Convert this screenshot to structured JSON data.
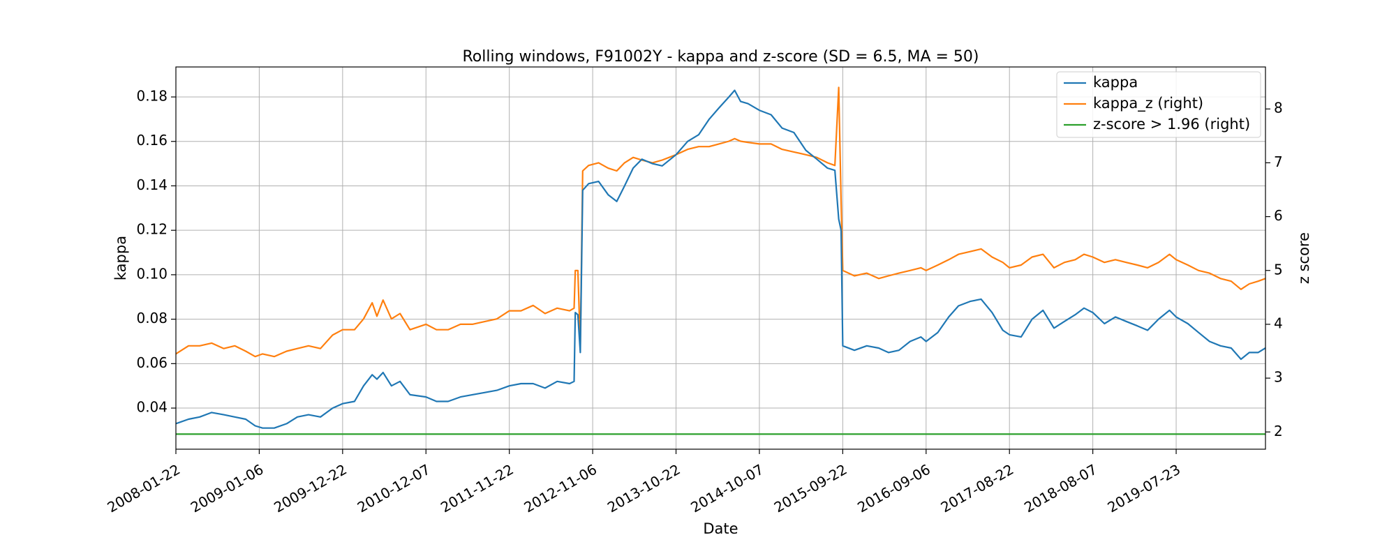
{
  "chart_data": {
    "type": "line",
    "title": "Rolling windows, F91002Y - kappa and z-score (SD = 6.5, MA = 50)",
    "xlabel": "Date",
    "ylabel": "kappa",
    "ylabel_right": "z score",
    "xlim": [
      "2008-01-22",
      "2020-08-01"
    ],
    "ylim": [
      0.0215,
      0.1935
    ],
    "ylim_right": [
      1.68,
      8.78
    ],
    "grid": true,
    "legend_position": "top-right",
    "x_ticks": [
      "2008-01-22",
      "2009-01-06",
      "2009-12-22",
      "2010-12-07",
      "2011-11-22",
      "2012-11-06",
      "2013-10-22",
      "2014-10-07",
      "2015-09-22",
      "2016-09-06",
      "2017-08-22",
      "2018-08-07",
      "2019-07-23"
    ],
    "y_ticks": [
      "0.04",
      "0.06",
      "0.08",
      "0.10",
      "0.12",
      "0.14",
      "0.16",
      "0.18"
    ],
    "y_ticks_right": [
      "2",
      "3",
      "4",
      "5",
      "6",
      "7",
      "8"
    ],
    "series": [
      {
        "name": "kappa",
        "axis": "left",
        "color": "#1f77b4",
        "points": [
          [
            "2008-01-22",
            0.033
          ],
          [
            "2008-03-15",
            0.035
          ],
          [
            "2008-05-01",
            0.036
          ],
          [
            "2008-06-20",
            0.038
          ],
          [
            "2008-08-10",
            0.037
          ],
          [
            "2008-09-25",
            0.036
          ],
          [
            "2008-11-10",
            0.035
          ],
          [
            "2008-12-20",
            0.032
          ],
          [
            "2009-01-20",
            0.031
          ],
          [
            "2009-03-10",
            0.031
          ],
          [
            "2009-05-01",
            0.033
          ],
          [
            "2009-06-15",
            0.036
          ],
          [
            "2009-08-01",
            0.037
          ],
          [
            "2009-09-20",
            0.036
          ],
          [
            "2009-11-10",
            0.04
          ],
          [
            "2009-12-22",
            0.042
          ],
          [
            "2010-02-10",
            0.043
          ],
          [
            "2010-03-20",
            0.05
          ],
          [
            "2010-04-25",
            0.055
          ],
          [
            "2010-05-15",
            0.053
          ],
          [
            "2010-06-10",
            0.056
          ],
          [
            "2010-07-15",
            0.05
          ],
          [
            "2010-08-20",
            0.052
          ],
          [
            "2010-10-01",
            0.046
          ],
          [
            "2010-12-07",
            0.045
          ],
          [
            "2011-01-20",
            0.043
          ],
          [
            "2011-03-10",
            0.043
          ],
          [
            "2011-05-01",
            0.045
          ],
          [
            "2011-06-20",
            0.046
          ],
          [
            "2011-08-10",
            0.047
          ],
          [
            "2011-10-01",
            0.048
          ],
          [
            "2011-11-22",
            0.05
          ],
          [
            "2012-01-10",
            0.051
          ],
          [
            "2012-03-01",
            0.051
          ],
          [
            "2012-04-20",
            0.049
          ],
          [
            "2012-06-10",
            0.052
          ],
          [
            "2012-08-01",
            0.051
          ],
          [
            "2012-08-20",
            0.052
          ],
          [
            "2012-08-25",
            0.083
          ],
          [
            "2012-09-05",
            0.082
          ],
          [
            "2012-09-15",
            0.065
          ],
          [
            "2012-09-25",
            0.138
          ],
          [
            "2012-10-20",
            0.141
          ],
          [
            "2012-12-01",
            0.142
          ],
          [
            "2013-01-10",
            0.136
          ],
          [
            "2013-02-15",
            0.133
          ],
          [
            "2013-03-20",
            0.14
          ],
          [
            "2013-04-25",
            0.148
          ],
          [
            "2013-06-01",
            0.152
          ],
          [
            "2013-07-15",
            0.15
          ],
          [
            "2013-08-25",
            0.149
          ],
          [
            "2013-10-22",
            0.154
          ],
          [
            "2013-12-10",
            0.16
          ],
          [
            "2014-01-25",
            0.163
          ],
          [
            "2014-03-10",
            0.17
          ],
          [
            "2014-04-20",
            0.175
          ],
          [
            "2014-06-01",
            0.18
          ],
          [
            "2014-06-25",
            0.183
          ],
          [
            "2014-07-20",
            0.178
          ],
          [
            "2014-08-20",
            0.177
          ],
          [
            "2014-10-07",
            0.174
          ],
          [
            "2014-11-25",
            0.172
          ],
          [
            "2015-01-10",
            0.166
          ],
          [
            "2015-03-01",
            0.164
          ],
          [
            "2015-04-20",
            0.156
          ],
          [
            "2015-06-05",
            0.152
          ],
          [
            "2015-07-20",
            0.148
          ],
          [
            "2015-08-20",
            0.147
          ],
          [
            "2015-09-05",
            0.125
          ],
          [
            "2015-09-15",
            0.12
          ],
          [
            "2015-09-22",
            0.068
          ],
          [
            "2015-11-10",
            0.066
          ],
          [
            "2016-01-01",
            0.068
          ],
          [
            "2016-02-20",
            0.067
          ],
          [
            "2016-04-01",
            0.065
          ],
          [
            "2016-05-15",
            0.066
          ],
          [
            "2016-07-01",
            0.07
          ],
          [
            "2016-08-15",
            0.072
          ],
          [
            "2016-09-06",
            0.07
          ],
          [
            "2016-10-25",
            0.074
          ],
          [
            "2016-12-10",
            0.081
          ],
          [
            "2017-01-20",
            0.086
          ],
          [
            "2017-03-10",
            0.088
          ],
          [
            "2017-04-25",
            0.089
          ],
          [
            "2017-06-10",
            0.083
          ],
          [
            "2017-07-25",
            0.075
          ],
          [
            "2017-08-22",
            0.073
          ],
          [
            "2017-10-10",
            0.072
          ],
          [
            "2017-11-25",
            0.08
          ],
          [
            "2018-01-10",
            0.084
          ],
          [
            "2018-02-25",
            0.076
          ],
          [
            "2018-04-10",
            0.079
          ],
          [
            "2018-05-25",
            0.082
          ],
          [
            "2018-07-01",
            0.085
          ],
          [
            "2018-08-07",
            0.083
          ],
          [
            "2018-09-25",
            0.078
          ],
          [
            "2018-11-10",
            0.081
          ],
          [
            "2018-12-25",
            0.079
          ],
          [
            "2019-02-10",
            0.077
          ],
          [
            "2019-03-25",
            0.075
          ],
          [
            "2019-05-10",
            0.08
          ],
          [
            "2019-06-25",
            0.084
          ],
          [
            "2019-07-23",
            0.081
          ],
          [
            "2019-09-10",
            0.078
          ],
          [
            "2019-10-25",
            0.074
          ],
          [
            "2019-12-10",
            0.07
          ],
          [
            "2020-01-25",
            0.068
          ],
          [
            "2020-03-10",
            0.067
          ],
          [
            "2020-04-20",
            0.062
          ],
          [
            "2020-05-25",
            0.065
          ],
          [
            "2020-07-01",
            0.065
          ],
          [
            "2020-08-01",
            0.067
          ]
        ]
      },
      {
        "name": "kappa_z (right)",
        "axis": "right",
        "color": "#ff7f0e",
        "points": [
          [
            "2008-01-22",
            3.45
          ],
          [
            "2008-03-15",
            3.6
          ],
          [
            "2008-05-01",
            3.6
          ],
          [
            "2008-06-20",
            3.65
          ],
          [
            "2008-08-10",
            3.55
          ],
          [
            "2008-09-25",
            3.6
          ],
          [
            "2008-11-10",
            3.5
          ],
          [
            "2008-12-20",
            3.4
          ],
          [
            "2009-01-20",
            3.45
          ],
          [
            "2009-03-10",
            3.4
          ],
          [
            "2009-05-01",
            3.5
          ],
          [
            "2009-06-15",
            3.55
          ],
          [
            "2009-08-01",
            3.6
          ],
          [
            "2009-09-20",
            3.55
          ],
          [
            "2009-11-10",
            3.8
          ],
          [
            "2009-12-22",
            3.9
          ],
          [
            "2010-02-10",
            3.9
          ],
          [
            "2010-03-20",
            4.1
          ],
          [
            "2010-04-25",
            4.4
          ],
          [
            "2010-05-15",
            4.15
          ],
          [
            "2010-06-10",
            4.45
          ],
          [
            "2010-07-15",
            4.1
          ],
          [
            "2010-08-20",
            4.2
          ],
          [
            "2010-10-01",
            3.9
          ],
          [
            "2010-12-07",
            4.0
          ],
          [
            "2011-01-20",
            3.9
          ],
          [
            "2011-03-10",
            3.9
          ],
          [
            "2011-05-01",
            4.0
          ],
          [
            "2011-06-20",
            4.0
          ],
          [
            "2011-08-10",
            4.05
          ],
          [
            "2011-10-01",
            4.1
          ],
          [
            "2011-11-22",
            4.25
          ],
          [
            "2012-01-10",
            4.25
          ],
          [
            "2012-03-01",
            4.35
          ],
          [
            "2012-04-20",
            4.2
          ],
          [
            "2012-06-10",
            4.3
          ],
          [
            "2012-08-01",
            4.25
          ],
          [
            "2012-08-20",
            4.3
          ],
          [
            "2012-08-25",
            5.0
          ],
          [
            "2012-09-05",
            5.0
          ],
          [
            "2012-09-15",
            3.6
          ],
          [
            "2012-09-25",
            6.85
          ],
          [
            "2012-10-20",
            6.95
          ],
          [
            "2012-12-01",
            7.0
          ],
          [
            "2013-01-10",
            6.9
          ],
          [
            "2013-02-15",
            6.85
          ],
          [
            "2013-03-20",
            7.0
          ],
          [
            "2013-04-25",
            7.1
          ],
          [
            "2013-06-01",
            7.05
          ],
          [
            "2013-07-15",
            7.0
          ],
          [
            "2013-08-25",
            7.05
          ],
          [
            "2013-10-22",
            7.15
          ],
          [
            "2013-12-10",
            7.25
          ],
          [
            "2014-01-25",
            7.3
          ],
          [
            "2014-03-10",
            7.3
          ],
          [
            "2014-04-20",
            7.35
          ],
          [
            "2014-06-01",
            7.4
          ],
          [
            "2014-06-25",
            7.45
          ],
          [
            "2014-07-20",
            7.4
          ],
          [
            "2014-08-20",
            7.38
          ],
          [
            "2014-10-07",
            7.35
          ],
          [
            "2014-11-25",
            7.35
          ],
          [
            "2015-01-10",
            7.25
          ],
          [
            "2015-03-01",
            7.2
          ],
          [
            "2015-04-20",
            7.15
          ],
          [
            "2015-06-05",
            7.1
          ],
          [
            "2015-07-20",
            7.0
          ],
          [
            "2015-08-20",
            6.95
          ],
          [
            "2015-09-05",
            8.4
          ],
          [
            "2015-09-15",
            6.3
          ],
          [
            "2015-09-22",
            5.0
          ],
          [
            "2015-11-10",
            4.9
          ],
          [
            "2016-01-01",
            4.95
          ],
          [
            "2016-02-20",
            4.85
          ],
          [
            "2016-04-01",
            4.9
          ],
          [
            "2016-05-15",
            4.95
          ],
          [
            "2016-07-01",
            5.0
          ],
          [
            "2016-08-15",
            5.05
          ],
          [
            "2016-09-06",
            5.0
          ],
          [
            "2016-10-25",
            5.1
          ],
          [
            "2016-12-10",
            5.2
          ],
          [
            "2017-01-20",
            5.3
          ],
          [
            "2017-03-10",
            5.35
          ],
          [
            "2017-04-25",
            5.4
          ],
          [
            "2017-06-10",
            5.25
          ],
          [
            "2017-07-25",
            5.15
          ],
          [
            "2017-08-22",
            5.05
          ],
          [
            "2017-10-10",
            5.1
          ],
          [
            "2017-11-25",
            5.25
          ],
          [
            "2018-01-10",
            5.3
          ],
          [
            "2018-02-25",
            5.05
          ],
          [
            "2018-04-10",
            5.15
          ],
          [
            "2018-05-25",
            5.2
          ],
          [
            "2018-07-01",
            5.3
          ],
          [
            "2018-08-07",
            5.25
          ],
          [
            "2018-09-25",
            5.15
          ],
          [
            "2018-11-10",
            5.2
          ],
          [
            "2018-12-25",
            5.15
          ],
          [
            "2019-02-10",
            5.1
          ],
          [
            "2019-03-25",
            5.05
          ],
          [
            "2019-05-10",
            5.15
          ],
          [
            "2019-06-25",
            5.3
          ],
          [
            "2019-07-23",
            5.2
          ],
          [
            "2019-09-10",
            5.1
          ],
          [
            "2019-10-25",
            5.0
          ],
          [
            "2019-12-10",
            4.95
          ],
          [
            "2020-01-25",
            4.85
          ],
          [
            "2020-03-10",
            4.8
          ],
          [
            "2020-04-20",
            4.65
          ],
          [
            "2020-05-25",
            4.75
          ],
          [
            "2020-07-01",
            4.8
          ],
          [
            "2020-08-01",
            4.85
          ]
        ]
      },
      {
        "name": "z-score > 1.96 (right)",
        "axis": "right",
        "color": "#2ca02c",
        "points": [
          [
            "2008-01-22",
            1.96
          ],
          [
            "2020-08-01",
            1.96
          ]
        ]
      }
    ]
  }
}
